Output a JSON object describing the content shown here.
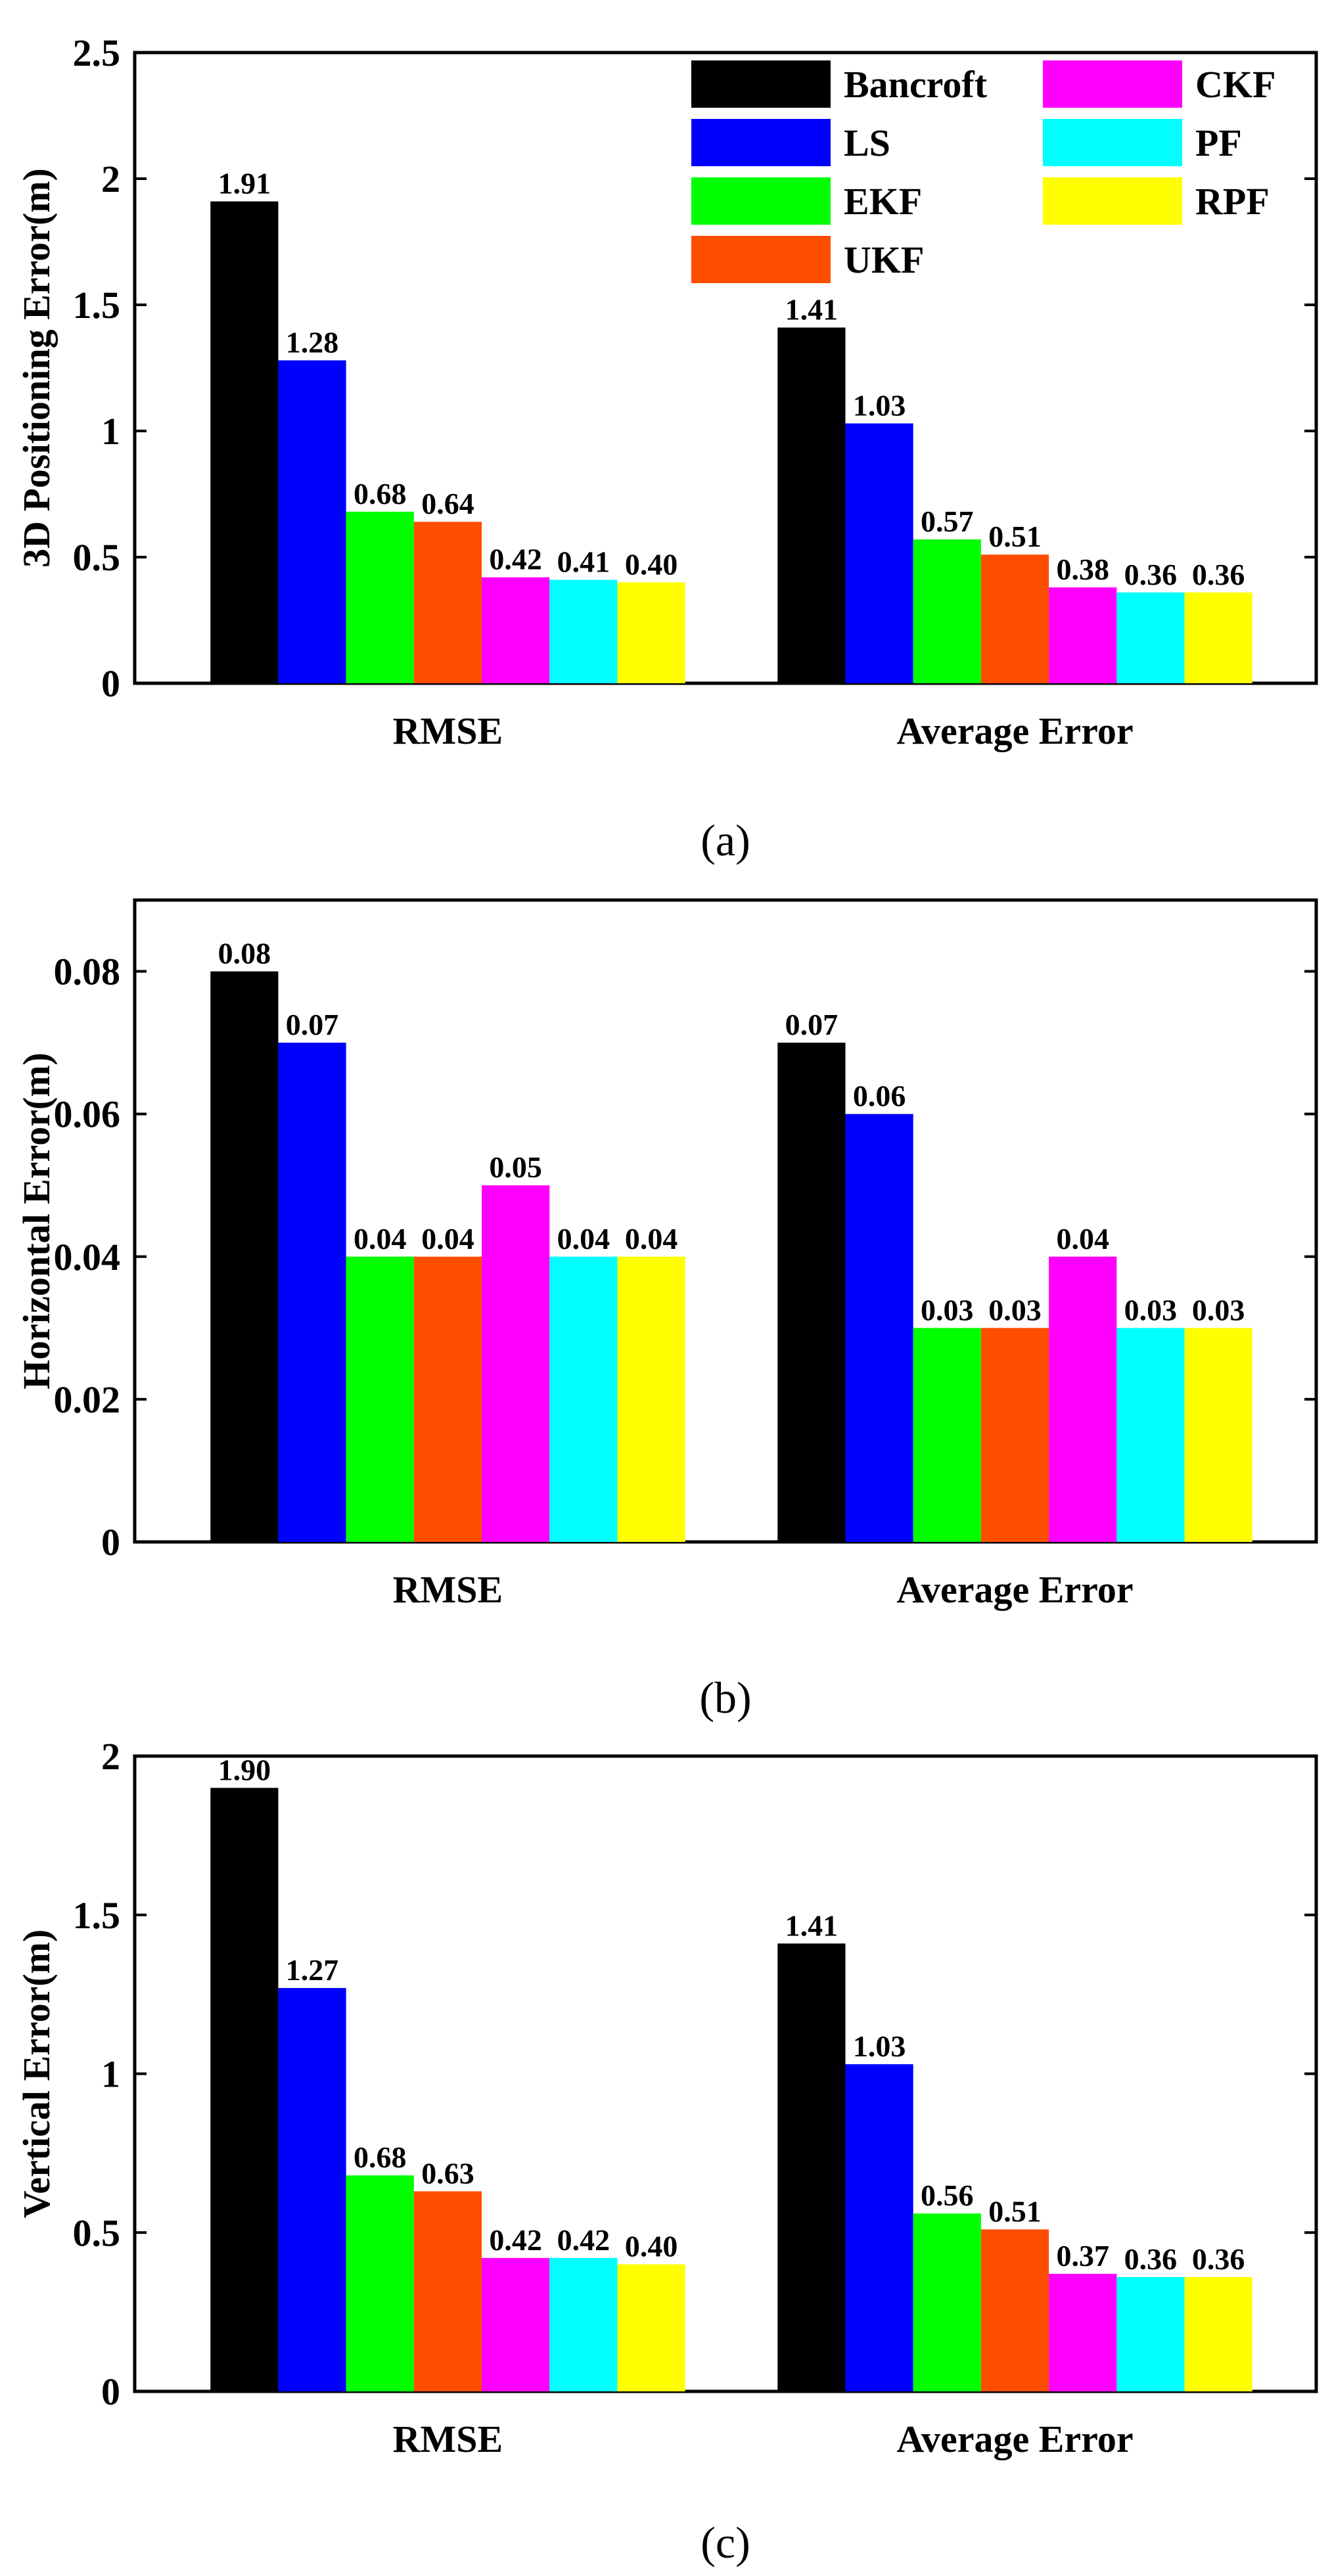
{
  "series_names": [
    "Bancroft",
    "LS",
    "EKF",
    "UKF",
    "CKF",
    "PF",
    "RPF"
  ],
  "colors": {
    "Bancroft": "#000000",
    "LS": "#0000ff",
    "EKF": "#00ff00",
    "UKF": "#ff4d00",
    "CKF": "#ff00ff",
    "PF": "#00ffff",
    "RPF": "#ffff00"
  },
  "chart_data": [
    {
      "type": "bar",
      "caption": "(a)",
      "ylabel": "3D Positioning Error(m)",
      "xlabel": "",
      "categories": [
        "RMSE",
        "Average Error"
      ],
      "ylim": [
        0,
        2.5
      ],
      "yticks": [
        "0",
        "0.5",
        "1",
        "1.5",
        "2",
        "2.5"
      ],
      "ytick_values": [
        0,
        0.5,
        1,
        1.5,
        2,
        2.5
      ],
      "legend": "top-right",
      "series": [
        {
          "name": "Bancroft",
          "values": [
            1.91,
            1.41
          ],
          "labels": [
            "1.91",
            "1.41"
          ]
        },
        {
          "name": "LS",
          "values": [
            1.28,
            1.03
          ],
          "labels": [
            "1.28",
            "1.03"
          ]
        },
        {
          "name": "EKF",
          "values": [
            0.68,
            0.57
          ],
          "labels": [
            "0.68",
            "0.57"
          ]
        },
        {
          "name": "UKF",
          "values": [
            0.64,
            0.51
          ],
          "labels": [
            "0.64",
            "0.51"
          ]
        },
        {
          "name": "CKF",
          "values": [
            0.42,
            0.38
          ],
          "labels": [
            "0.42",
            "0.38"
          ]
        },
        {
          "name": "PF",
          "values": [
            0.41,
            0.36
          ],
          "labels": [
            "0.41",
            "0.36"
          ]
        },
        {
          "name": "RPF",
          "values": [
            0.4,
            0.36
          ],
          "labels": [
            "0.40",
            "0.36"
          ]
        }
      ]
    },
    {
      "type": "bar",
      "caption": "(b)",
      "ylabel": "Horizontal Error(m)",
      "xlabel": "",
      "categories": [
        "RMSE",
        "Average Error"
      ],
      "ylim": [
        0,
        0.09
      ],
      "yticks": [
        "0",
        "0.02",
        "0.04",
        "0.06",
        "0.08"
      ],
      "ytick_values": [
        0,
        0.02,
        0.04,
        0.06,
        0.08
      ],
      "series": [
        {
          "name": "Bancroft",
          "values": [
            0.08,
            0.07
          ],
          "labels": [
            "0.08",
            "0.07"
          ]
        },
        {
          "name": "LS",
          "values": [
            0.07,
            0.06
          ],
          "labels": [
            "0.07",
            "0.06"
          ]
        },
        {
          "name": "EKF",
          "values": [
            0.04,
            0.03
          ],
          "labels": [
            "0.04",
            "0.03"
          ]
        },
        {
          "name": "UKF",
          "values": [
            0.04,
            0.03
          ],
          "labels": [
            "0.04",
            "0.03"
          ]
        },
        {
          "name": "CKF",
          "values": [
            0.05,
            0.04
          ],
          "labels": [
            "0.05",
            "0.04"
          ]
        },
        {
          "name": "PF",
          "values": [
            0.04,
            0.03
          ],
          "labels": [
            "0.04",
            "0.03"
          ]
        },
        {
          "name": "RPF",
          "values": [
            0.04,
            0.03
          ],
          "labels": [
            "0.04",
            "0.03"
          ]
        }
      ]
    },
    {
      "type": "bar",
      "caption": "(c)",
      "ylabel": "Vertical Error(m)",
      "xlabel": "",
      "categories": [
        "RMSE",
        "Average Error"
      ],
      "ylim": [
        0,
        2
      ],
      "yticks": [
        "0",
        "0.5",
        "1",
        "1.5",
        "2"
      ],
      "ytick_values": [
        0,
        0.5,
        1,
        1.5,
        2
      ],
      "series": [
        {
          "name": "Bancroft",
          "values": [
            1.9,
            1.41
          ],
          "labels": [
            "1.90",
            "1.41"
          ]
        },
        {
          "name": "LS",
          "values": [
            1.27,
            1.03
          ],
          "labels": [
            "1.27",
            "1.03"
          ]
        },
        {
          "name": "EKF",
          "values": [
            0.68,
            0.56
          ],
          "labels": [
            "0.68",
            "0.56"
          ]
        },
        {
          "name": "UKF",
          "values": [
            0.63,
            0.51
          ],
          "labels": [
            "0.63",
            "0.51"
          ]
        },
        {
          "name": "CKF",
          "values": [
            0.42,
            0.37
          ],
          "labels": [
            "0.42",
            "0.37"
          ]
        },
        {
          "name": "PF",
          "values": [
            0.42,
            0.36
          ],
          "labels": [
            "0.42",
            "0.36"
          ]
        },
        {
          "name": "RPF",
          "values": [
            0.4,
            0.36
          ],
          "labels": [
            "0.40",
            "0.36"
          ]
        }
      ]
    }
  ]
}
